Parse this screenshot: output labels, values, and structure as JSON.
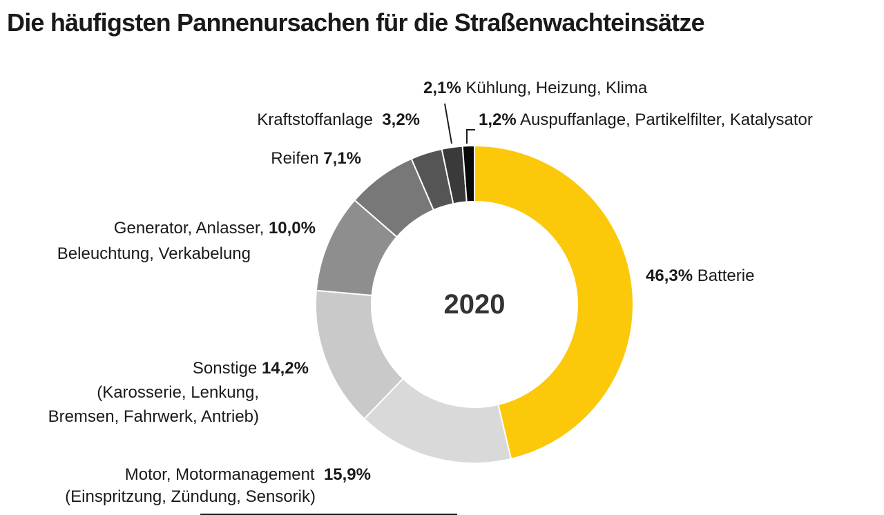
{
  "title": "Die häufigsten Pannenursachen für die Straßenwachteinsätze",
  "accent_color": "#FCC80A",
  "text_color": "#1a1a1a",
  "chart_data": {
    "type": "donut",
    "title": "Die häufigsten Pannenursachen für die Straßenwachteinsätze",
    "center_label": "2020",
    "unit": "%",
    "start_angle_deg": 0,
    "direction": "clockwise",
    "total": 100.0,
    "segments": [
      {
        "name": "Batterie",
        "value": 46.3,
        "display": "46,3%",
        "color": "#FCC80A"
      },
      {
        "name": "Motor, Motormanagement (Einspritzung, Zündung, Sensorik)",
        "value": 15.9,
        "display": "15,9%",
        "color": "#D9D9D9"
      },
      {
        "name": "Sonstige (Karosserie, Lenkung, Bremsen, Fahrwerk, Antrieb)",
        "value": 14.2,
        "display": "14,2%",
        "color": "#C9C9C9"
      },
      {
        "name": "Generator, Anlasser, Beleuchtung, Verkabelung",
        "value": 10.0,
        "display": "10,0%",
        "color": "#8E8E8E"
      },
      {
        "name": "Reifen",
        "value": 7.1,
        "display": "7,1%",
        "color": "#787878"
      },
      {
        "name": "Kraftstoffanlage",
        "value": 3.2,
        "display": "3,2%",
        "color": "#555555"
      },
      {
        "name": "Kühlung, Heizung, Klima",
        "value": 2.1,
        "display": "2,1%",
        "color": "#3A3A3A"
      },
      {
        "name": "Auspuffanlage, Partikelfilter, Katalysator",
        "value": 1.2,
        "display": "1,2%",
        "color": "#0A0A0A"
      }
    ]
  },
  "callouts": {
    "kuehlung": {
      "lines": [
        [
          {
            "t": "2,1%",
            "b": true
          },
          {
            "t": " Kühlung, Heizung, Klima",
            "b": false
          }
        ]
      ]
    },
    "kraftstoffanlage": {
      "lines": [
        [
          {
            "t": "Kraftstoffanlage  ",
            "b": false
          },
          {
            "t": "3,2%",
            "b": true
          }
        ]
      ]
    },
    "auspuffanlage": {
      "lines": [
        [
          {
            "t": "1,2%",
            "b": true
          },
          {
            "t": " Auspuffanlage, Partikelfilter, Katalysator",
            "b": false
          }
        ]
      ]
    },
    "reifen": {
      "lines": [
        [
          {
            "t": "Reifen ",
            "b": false
          },
          {
            "t": "7,1%",
            "b": true
          }
        ]
      ]
    },
    "generator": {
      "lines": [
        [
          {
            "t": "Generator, Anlasser, ",
            "b": false
          },
          {
            "t": "10,0%",
            "b": true
          }
        ],
        [
          {
            "t": "Beleuchtung, Verkabelung",
            "b": false
          }
        ]
      ]
    },
    "batterie": {
      "lines": [
        [
          {
            "t": "46,3%",
            "b": true
          },
          {
            "t": " Batterie",
            "b": false
          }
        ]
      ]
    },
    "sonstige": {
      "lines": [
        [
          {
            "t": "Sonstige ",
            "b": false
          },
          {
            "t": "14,2%",
            "b": true
          }
        ],
        [
          {
            "t": "(Karosserie, Lenkung,",
            "b": false
          }
        ],
        [
          {
            "t": "Bremsen, Fahrwerk, Antrieb)",
            "b": false
          }
        ]
      ]
    },
    "motor": {
      "lines": [
        [
          {
            "t": "Motor, Motormanagement  ",
            "b": false
          },
          {
            "t": "15,9%",
            "b": true
          }
        ],
        [
          {
            "t": "(Einspritzung, Zündung, Sensorik)",
            "b": false
          }
        ]
      ]
    }
  }
}
